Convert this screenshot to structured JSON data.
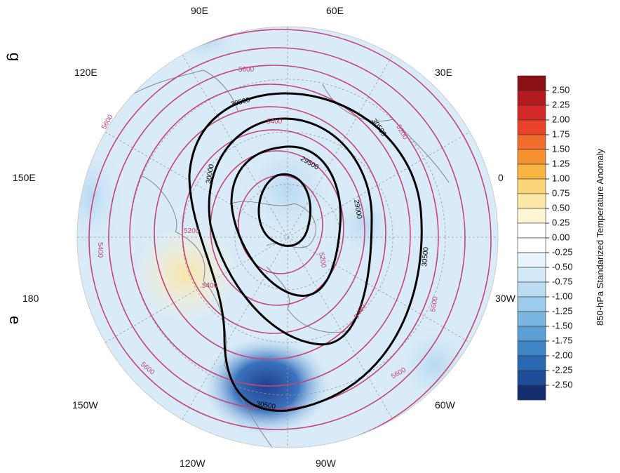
{
  "map": {
    "longitude_labels": [
      "90E",
      "60E",
      "120E",
      "30E",
      "150E",
      "0",
      "180",
      "30W",
      "150W",
      "60W",
      "120W",
      "90W"
    ],
    "side_fragments": [
      "g",
      "e"
    ],
    "contour_labels": {
      "pink": [
        "5600",
        "5600",
        "5400",
        "5400",
        "5200",
        "5200",
        "5400",
        "5600",
        "5600",
        "5600",
        "5200",
        "5400"
      ],
      "black": [
        "30500",
        "30500",
        "30000",
        "29500",
        "29000",
        "30500",
        "30500"
      ]
    }
  },
  "colorbar": {
    "title": "850-hPa Standarized Temperature Anomaly",
    "ticks": [
      {
        "value": 2.5,
        "label": "2.50"
      },
      {
        "value": 2.25,
        "label": "2.25"
      },
      {
        "value": 2,
        "label": "2.00"
      },
      {
        "value": 1.75,
        "label": "1.75"
      },
      {
        "value": 1.5,
        "label": "1.50"
      },
      {
        "value": 1.25,
        "label": "1.25"
      },
      {
        "value": 1,
        "label": "1.00"
      },
      {
        "value": 0.75,
        "label": "0.75"
      },
      {
        "value": 0.5,
        "label": "0.50"
      },
      {
        "value": 0.25,
        "label": "0.25"
      },
      {
        "value": 0,
        "label": "0.00"
      },
      {
        "value": -0.25,
        "label": "-0.25"
      },
      {
        "value": -0.5,
        "label": "-0.50"
      },
      {
        "value": -0.75,
        "label": "-0.75"
      },
      {
        "value": -1,
        "label": "-1.00"
      },
      {
        "value": -1.25,
        "label": "-1.25"
      },
      {
        "value": -1.5,
        "label": "-1.50"
      },
      {
        "value": -1.75,
        "label": "-1.75"
      },
      {
        "value": -2,
        "label": "-2.00"
      },
      {
        "value": -2.25,
        "label": "-2.25"
      },
      {
        "value": -2.5,
        "label": "-2.50"
      }
    ],
    "colors": [
      "#8b1016",
      "#b31b1f",
      "#d42a27",
      "#e9442b",
      "#f06c2c",
      "#f5922f",
      "#f8b441",
      "#fbd57a",
      "#fde9a6",
      "#fff5d2",
      "#ffffff",
      "#ffffff",
      "#e8f3fb",
      "#d3e8f7",
      "#bcdcf2",
      "#9ccbeb",
      "#7bb6e0",
      "#5b9fd4",
      "#3f84c5",
      "#2a68b2",
      "#1d4c98",
      "#152f6e"
    ]
  }
}
